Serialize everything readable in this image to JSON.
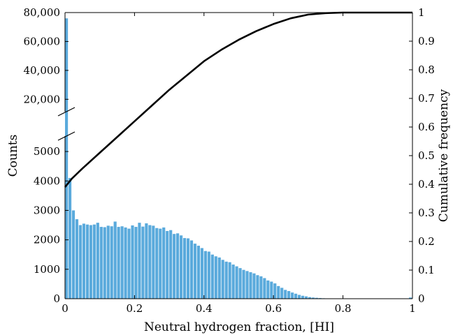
{
  "chart_data": {
    "type": "bar",
    "xlabel": "Neutral hydrogen fraction, [HI]",
    "ylabel": "Counts",
    "y2label": "Cumulative frequency",
    "xlim": [
      0,
      1
    ],
    "ylim_lower": [
      0,
      5500
    ],
    "ylim_upper": [
      10000,
      80000
    ],
    "y2lim": [
      0,
      1
    ],
    "axis_break": true,
    "bar_color": "#5aaadc",
    "line_color": "#000000",
    "x_ticks": [
      "0",
      "0.2",
      "0.4",
      "0.6",
      "0.8",
      "1"
    ],
    "y_ticks_lower": [
      "0",
      "1000",
      "2000",
      "3000",
      "4000",
      "5000"
    ],
    "y_ticks_upper": [
      "20,000",
      "40,000",
      "60,000",
      "80,000"
    ],
    "y2_ticks": [
      "0",
      "0.1",
      "0.2",
      "0.3",
      "0.4",
      "0.5",
      "0.6",
      "0.7",
      "0.8",
      "0.9",
      "1"
    ],
    "bin_width": 0.01,
    "histogram": [
      76000,
      4100,
      3000,
      2700,
      2500,
      2550,
      2520,
      2500,
      2520,
      2580,
      2440,
      2430,
      2480,
      2460,
      2620,
      2440,
      2460,
      2420,
      2380,
      2490,
      2440,
      2580,
      2450,
      2560,
      2500,
      2480,
      2400,
      2380,
      2420,
      2300,
      2330,
      2200,
      2220,
      2150,
      2060,
      2050,
      1980,
      1870,
      1800,
      1720,
      1620,
      1600,
      1500,
      1440,
      1400,
      1320,
      1260,
      1240,
      1160,
      1100,
      1040,
      980,
      940,
      900,
      860,
      800,
      760,
      700,
      620,
      580,
      520,
      430,
      370,
      300,
      260,
      210,
      170,
      130,
      100,
      80,
      55,
      40,
      30,
      22,
      15,
      10,
      8,
      6,
      5,
      4,
      3,
      3,
      2,
      2,
      2,
      2,
      2,
      2,
      2,
      2,
      2,
      2,
      2,
      2,
      2,
      2,
      2,
      3,
      5,
      40
    ],
    "cumulative": {
      "x": [
        0,
        0.01,
        0.02,
        0.05,
        0.1,
        0.15,
        0.2,
        0.25,
        0.3,
        0.35,
        0.4,
        0.45,
        0.5,
        0.55,
        0.6,
        0.65,
        0.7,
        0.75,
        0.8,
        0.9,
        1.0
      ],
      "y": [
        0.39,
        0.405,
        0.42,
        0.455,
        0.51,
        0.565,
        0.62,
        0.675,
        0.73,
        0.78,
        0.83,
        0.87,
        0.905,
        0.935,
        0.96,
        0.98,
        0.993,
        0.998,
        1.0,
        1.0,
        1.0
      ]
    }
  }
}
